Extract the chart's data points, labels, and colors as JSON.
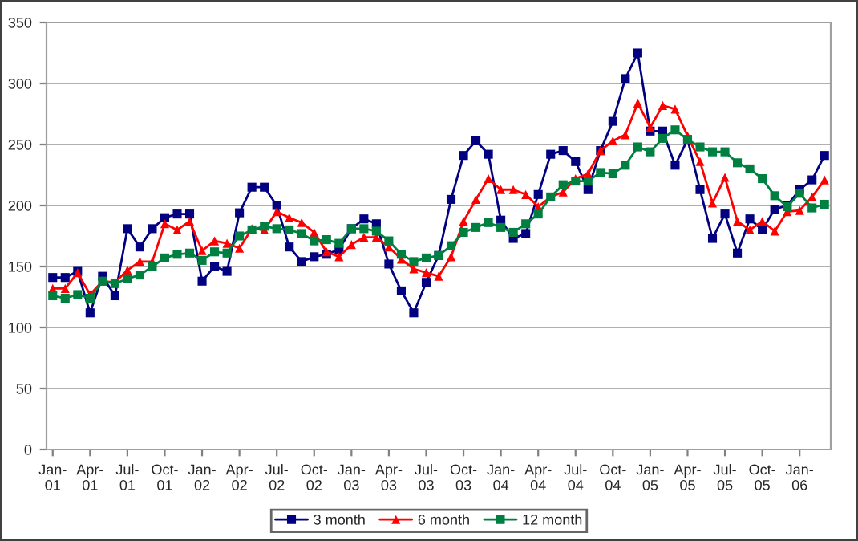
{
  "chart_data": {
    "type": "line",
    "categories": [
      "Jan-01",
      null,
      null,
      "Apr-01",
      null,
      null,
      "Jul-01",
      null,
      null,
      "Oct-01",
      null,
      null,
      "Jan-02",
      null,
      null,
      "Apr-02",
      null,
      null,
      "Jul-02",
      null,
      null,
      "Oct-02",
      null,
      null,
      "Jan-03",
      null,
      null,
      "Apr-03",
      null,
      null,
      "Jul-03",
      null,
      null,
      "Oct-03",
      null,
      null,
      "Jan-04",
      null,
      null,
      "Apr-04",
      null,
      null,
      "Jul-04",
      null,
      null,
      "Oct-04",
      null,
      null,
      "Jan-05",
      null,
      null,
      "Apr-05",
      null,
      null,
      "Jul-05",
      null,
      null,
      "Oct-05",
      null,
      null,
      "Jan-06",
      null,
      null
    ],
    "series": [
      {
        "name": "3 month",
        "color": "#000080",
        "marker": "square",
        "values": [
          141,
          141,
          146,
          112,
          142,
          126,
          181,
          166,
          181,
          190,
          193,
          193,
          138,
          150,
          146,
          194,
          215,
          215,
          200,
          166,
          154,
          158,
          160,
          164,
          181,
          189,
          185,
          152,
          130,
          112,
          137,
          159,
          205,
          241,
          253,
          242,
          188,
          173,
          177,
          209,
          242,
          245,
          236,
          213,
          245,
          269,
          304,
          325,
          261,
          261,
          233,
          254,
          213,
          173,
          193,
          161,
          189,
          180,
          197,
          200,
          213,
          221,
          241
        ]
      },
      {
        "name": "6 month",
        "color": "#ff0000",
        "marker": "triangle",
        "values": [
          132,
          132,
          145,
          127,
          138,
          137,
          147,
          154,
          154,
          185,
          180,
          187,
          163,
          171,
          169,
          165,
          181,
          180,
          195,
          190,
          186,
          178,
          162,
          158,
          168,
          174,
          174,
          166,
          156,
          148,
          145,
          142,
          158,
          187,
          205,
          222,
          213,
          213,
          209,
          199,
          207,
          211,
          222,
          226,
          245,
          253,
          258,
          284,
          264,
          282,
          279,
          257,
          236,
          202,
          223,
          187,
          180,
          187,
          179,
          195,
          196,
          207,
          221
        ]
      },
      {
        "name": "12 month",
        "color": "#008040",
        "marker": "square",
        "values": [
          126,
          124,
          127,
          124,
          138,
          136,
          140,
          143,
          150,
          157,
          160,
          161,
          155,
          162,
          161,
          175,
          180,
          183,
          181,
          180,
          177,
          171,
          172,
          169,
          181,
          181,
          179,
          171,
          160,
          154,
          157,
          159,
          167,
          178,
          182,
          186,
          182,
          178,
          185,
          193,
          207,
          217,
          220,
          220,
          227,
          226,
          233,
          248,
          244,
          255,
          262,
          254,
          248,
          244,
          244,
          235,
          230,
          222,
          208,
          199,
          210,
          198,
          201
        ]
      }
    ],
    "ylim": [
      0,
      350
    ],
    "yticks": [
      0,
      50,
      100,
      150,
      200,
      250,
      300,
      350
    ],
    "grid": "y",
    "legend": "bottom",
    "line_style": "solid"
  }
}
